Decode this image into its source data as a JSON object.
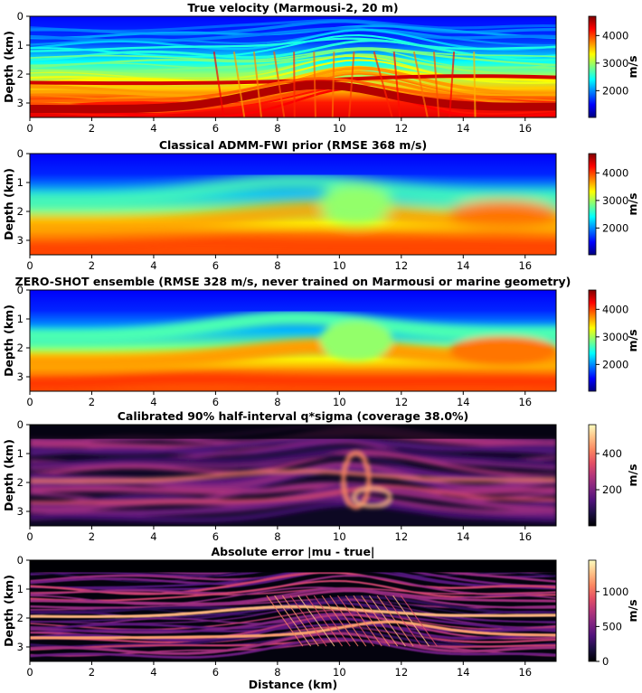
{
  "chart_data": [
    {
      "type": "heatmap",
      "title": "True velocity (Marmousi-2, 20 m)",
      "xlabel": "",
      "ylabel": "Depth (km)",
      "xlim": [
        0,
        17
      ],
      "ylim": [
        0,
        3.5
      ],
      "x_ticks": [
        "0",
        "2",
        "4",
        "6",
        "8",
        "10",
        "12",
        "14",
        "16"
      ],
      "y_ticks": [
        "0",
        "1",
        "2",
        "3"
      ],
      "colormap": "jet",
      "colorbar_label": "m/s",
      "colorbar_range": [
        1028,
        4700
      ],
      "colorbar_ticks": [
        "2000",
        "3000",
        "4000"
      ]
    },
    {
      "type": "heatmap",
      "title": "Classical ADMM-FWI prior (RMSE 368 m/s)",
      "xlabel": "",
      "ylabel": "Depth (km)",
      "xlim": [
        0,
        17
      ],
      "ylim": [
        0,
        3.5
      ],
      "x_ticks": [
        "0",
        "2",
        "4",
        "6",
        "8",
        "10",
        "12",
        "14",
        "16"
      ],
      "y_ticks": [
        "0",
        "1",
        "2",
        "3"
      ],
      "colormap": "jet",
      "colorbar_label": "m/s",
      "colorbar_range": [
        1028,
        4700
      ],
      "colorbar_ticks": [
        "2000",
        "3000",
        "4000"
      ]
    },
    {
      "type": "heatmap",
      "title": "ZERO-SHOT ensemble (RMSE 328 m/s, never trained on Marmousi or marine geometry)",
      "xlabel": "",
      "ylabel": "Depth (km)",
      "xlim": [
        0,
        17
      ],
      "ylim": [
        0,
        3.5
      ],
      "x_ticks": [
        "0",
        "2",
        "4",
        "6",
        "8",
        "10",
        "12",
        "14",
        "16"
      ],
      "y_ticks": [
        "0",
        "1",
        "2",
        "3"
      ],
      "colormap": "jet",
      "colorbar_label": "m/s",
      "colorbar_range": [
        1028,
        4700
      ],
      "colorbar_ticks": [
        "2000",
        "3000",
        "4000"
      ]
    },
    {
      "type": "heatmap",
      "title": "Calibrated 90% half-interval q*sigma (coverage 38.0%)",
      "xlabel": "",
      "ylabel": "Depth (km)",
      "xlim": [
        0,
        17
      ],
      "ylim": [
        0,
        3.5
      ],
      "x_ticks": [
        "0",
        "2",
        "4",
        "6",
        "8",
        "10",
        "12",
        "14",
        "16"
      ],
      "y_ticks": [
        "0",
        "1",
        "2",
        "3"
      ],
      "colormap": "magma",
      "colorbar_label": "m/s",
      "colorbar_range": [
        0,
        560
      ],
      "colorbar_ticks": [
        "200",
        "400"
      ]
    },
    {
      "type": "heatmap",
      "title": "Absolute error |mu - true|",
      "xlabel": "Distance (km)",
      "ylabel": "Depth (km)",
      "xlim": [
        0,
        17
      ],
      "ylim": [
        0,
        3.5
      ],
      "x_ticks": [
        "0",
        "2",
        "4",
        "6",
        "8",
        "10",
        "12",
        "14",
        "16"
      ],
      "y_ticks": [
        "0",
        "1",
        "2",
        "3"
      ],
      "colormap": "magma",
      "colorbar_label": "m/s",
      "colorbar_range": [
        0,
        1450
      ],
      "colorbar_ticks": [
        "0",
        "500",
        "1000"
      ]
    }
  ]
}
